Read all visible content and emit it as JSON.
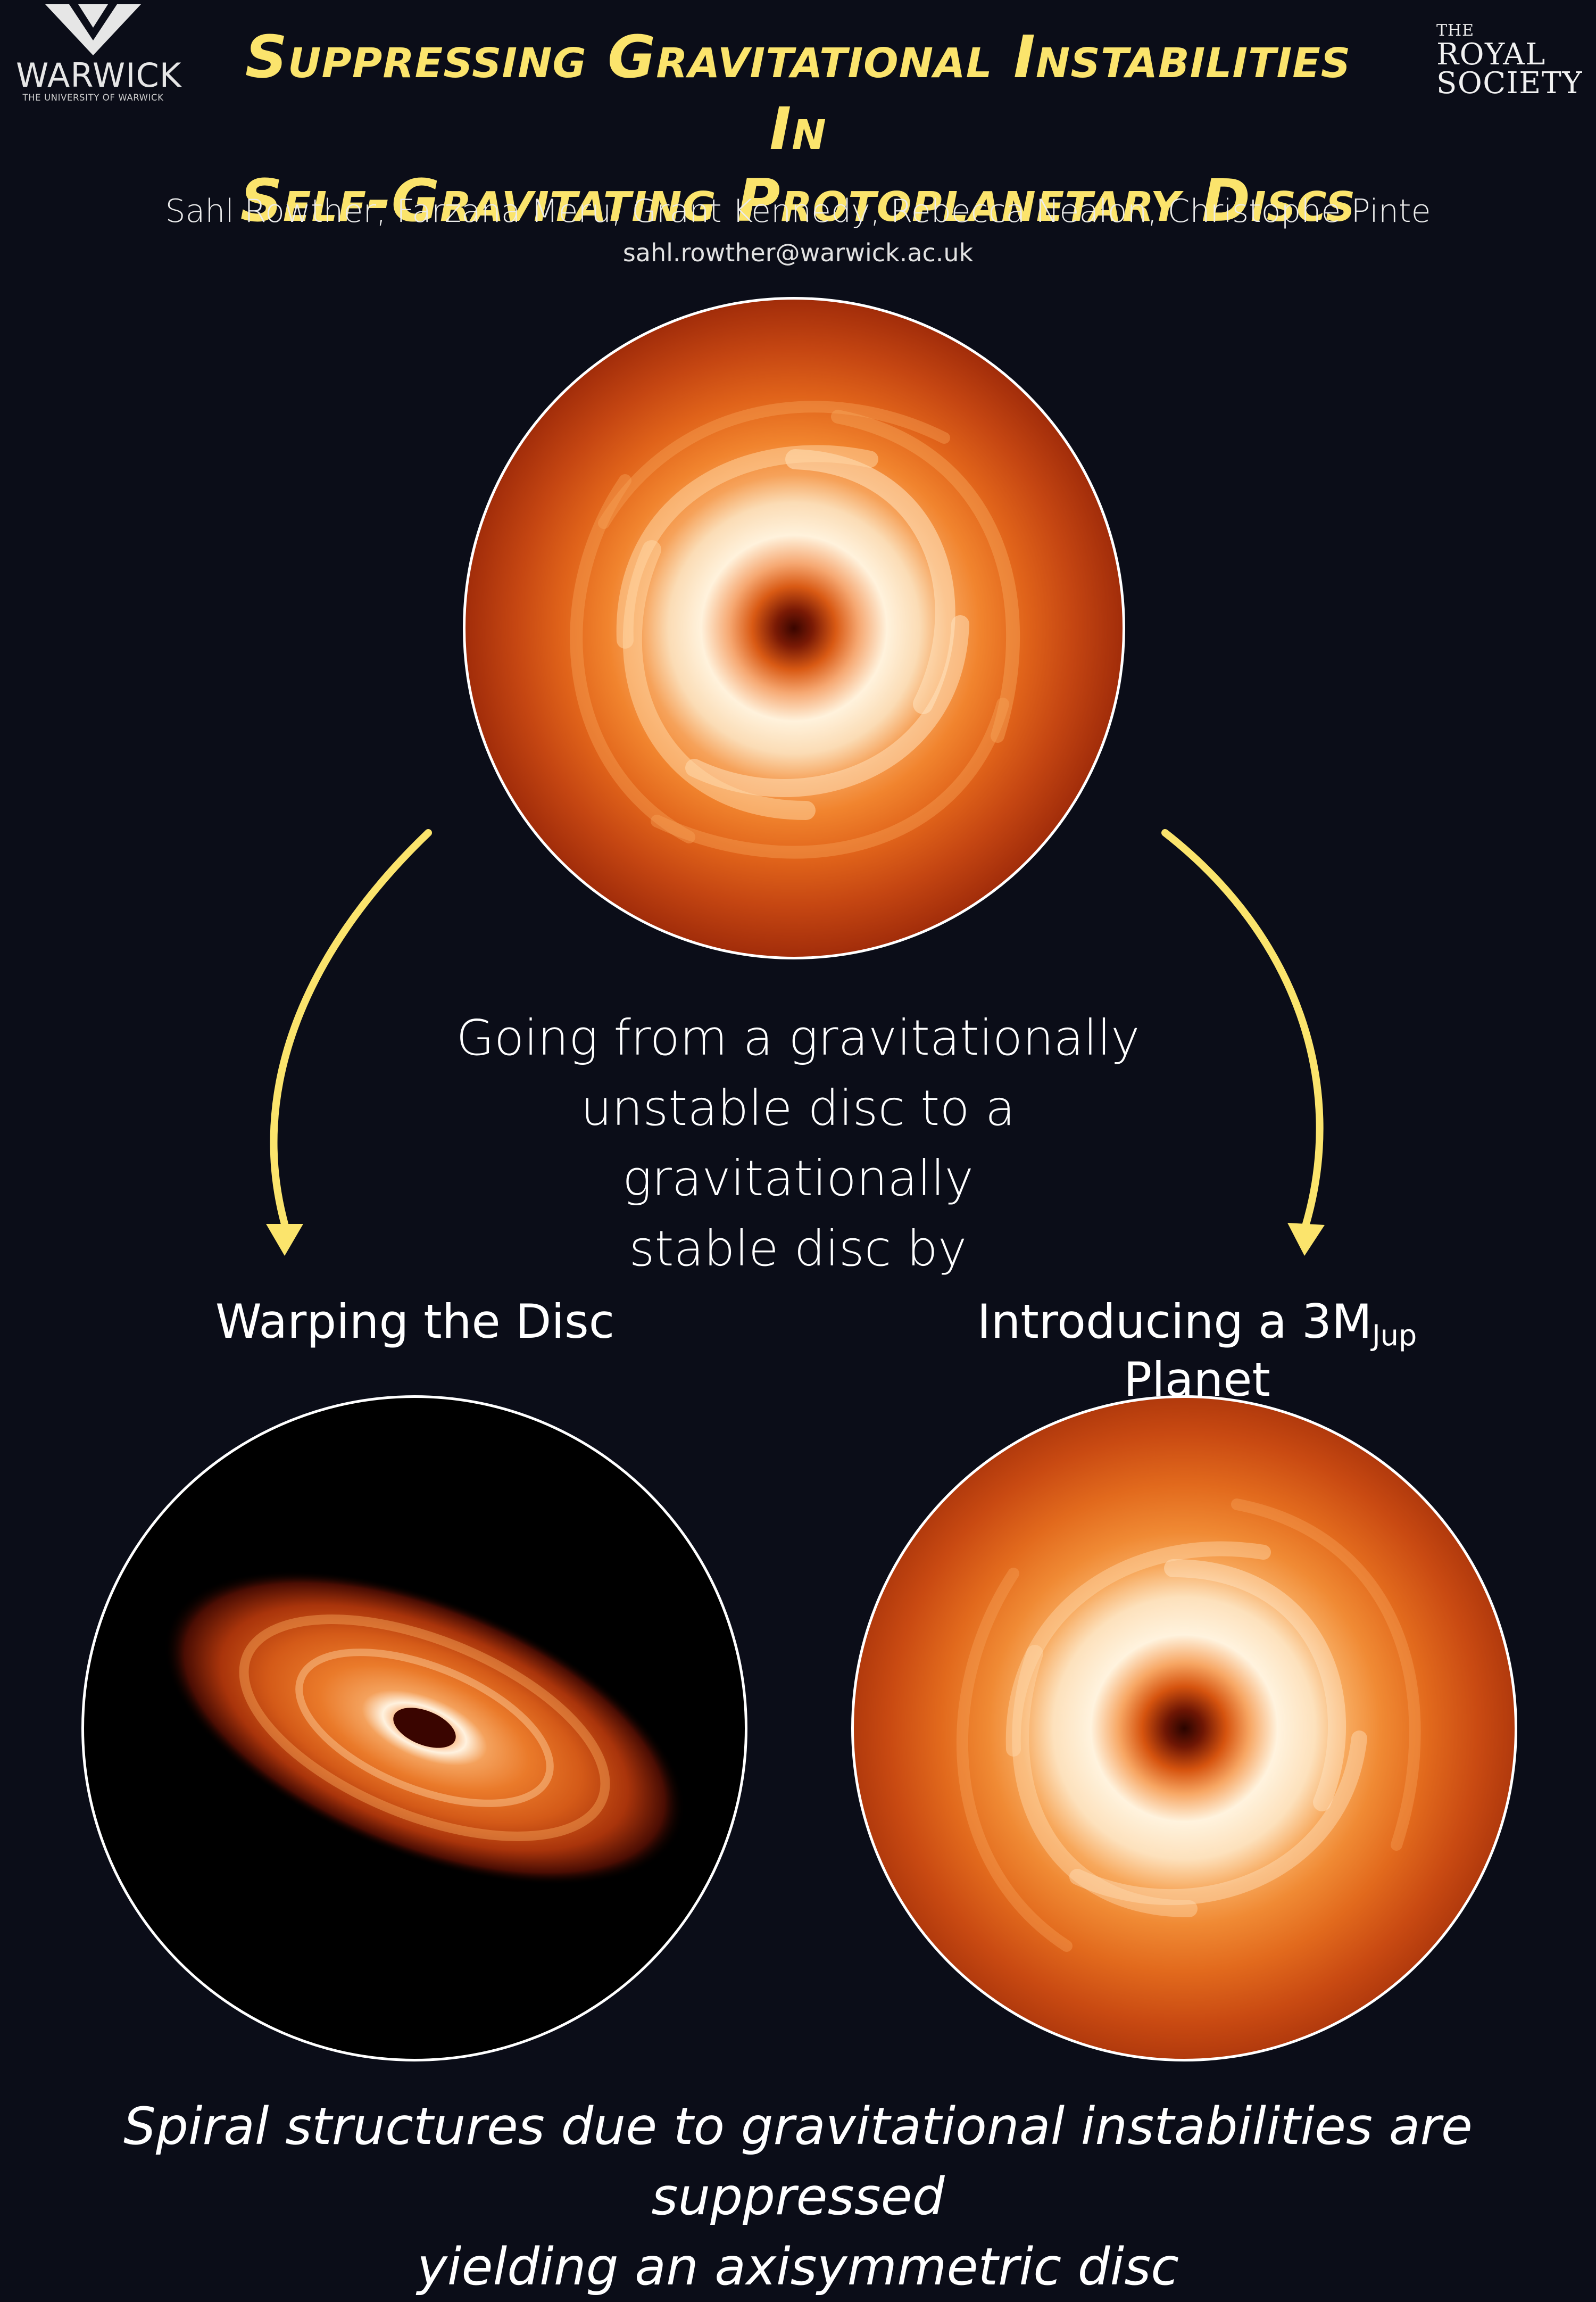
{
  "logos": {
    "left": {
      "name": "WARWICK",
      "subtitle": "THE UNIVERSITY OF WARWICK"
    },
    "right": {
      "line1": "THE",
      "line2": "ROYAL",
      "line3": "SOCIETY"
    }
  },
  "title": {
    "line1": "Suppressing Gravitational Instabilities In",
    "line2": "Self-Gravitating Protoplanetary Discs"
  },
  "authors": "Sahl Rowther, Farzana Meru, Grant Kennedy, Rebecca Nealon, Christophe Pinte",
  "email": "sahl.rowther@warwick.ac.uk",
  "center_text": {
    "line1": "Going from a gravitationally",
    "line2": "unstable disc to a gravitationally",
    "line3": "stable disc by"
  },
  "labels": {
    "left": "Warping the Disc",
    "right_prefix": "Introducing a 3M",
    "right_sub": "Jup",
    "right_suffix": " Planet"
  },
  "bottom_text": {
    "line1": "Spiral structures due to gravitational instabilities are suppressed",
    "line2": "yielding an axisymmetric disc"
  },
  "colors": {
    "background": "#0b0d18",
    "title": "#fbe46c",
    "arrow": "#fbe46c",
    "disc_border": "#ffffff"
  }
}
